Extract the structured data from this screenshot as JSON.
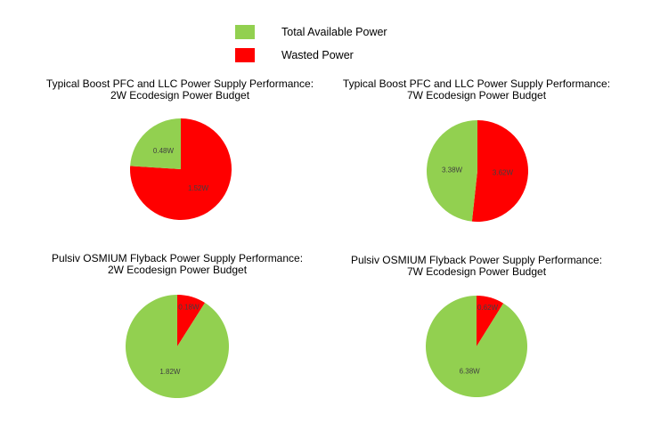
{
  "colors": {
    "available": "#92d050",
    "wasted": "#ff0000"
  },
  "legend": {
    "position": "top-center",
    "items": [
      {
        "label": "Total Available Power",
        "color": "#92d050"
      },
      {
        "label": "Wasted Power",
        "color": "#ff0000"
      }
    ]
  },
  "chart_data": [
    {
      "type": "pie",
      "title_line1": "Typical Boost PFC and LLC Power Supply Performance:",
      "title_line2": "2W Ecodesign Power Budget",
      "slices": [
        {
          "series": "Wasted Power",
          "value": 1.52,
          "label": "1.52W"
        },
        {
          "series": "Total Available Power",
          "value": 0.48,
          "label": "0.48W"
        }
      ]
    },
    {
      "type": "pie",
      "title_line1": "Typical Boost PFC and LLC Power Supply Performance:",
      "title_line2": "7W Ecodesign Power Budget",
      "slices": [
        {
          "series": "Wasted Power",
          "value": 3.62,
          "label": "3.62W"
        },
        {
          "series": "Total Available Power",
          "value": 3.38,
          "label": "3.38W"
        }
      ]
    },
    {
      "type": "pie",
      "title_line1": "Pulsiv OSMIUM Flyback Power Supply Performance:",
      "title_line2": "2W Ecodesign Power Budget",
      "slices": [
        {
          "series": "Wasted Power",
          "value": 0.18,
          "label": "0.18W"
        },
        {
          "series": "Total Available Power",
          "value": 1.82,
          "label": "1.82W"
        }
      ]
    },
    {
      "type": "pie",
      "title_line1": "Pulsiv OSMIUM Flyback Power Supply Performance:",
      "title_line2": "7W Ecodesign Power Budget",
      "slices": [
        {
          "series": "Wasted Power",
          "value": 0.62,
          "label": "0.62W"
        },
        {
          "series": "Total Available Power",
          "value": 6.38,
          "label": "6.38W"
        }
      ]
    }
  ]
}
